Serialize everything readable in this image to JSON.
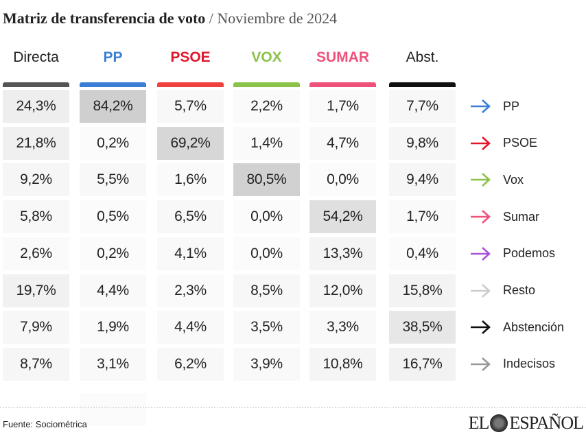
{
  "title": {
    "main": "Matriz de transferencia de voto",
    "sub": "/ Noviembre de 2024"
  },
  "chart_data": {
    "type": "heatmap",
    "columns": [
      {
        "label": "Directa",
        "color": "#222222",
        "bar_color": "#555555"
      },
      {
        "label": "PP",
        "color": "#3a7fd5",
        "bar_color": "#3a7fd5"
      },
      {
        "label": "PSOE",
        "color": "#e3172b",
        "bar_color": "#f04040"
      },
      {
        "label": "VOX",
        "color": "#8bc34a",
        "bar_color": "#8bc34a"
      },
      {
        "label": "SUMAR",
        "color": "#f0517a",
        "bar_color": "#f0517a"
      },
      {
        "label": "Abst.",
        "color": "#222222",
        "bar_color": "#111111"
      }
    ],
    "rows": [
      {
        "label": "PP",
        "arrow_color": "#3a7fd5",
        "values": [
          "24,3%",
          "84,2%",
          "5,7%",
          "2,2%",
          "1,7%",
          "7,7%"
        ]
      },
      {
        "label": "PSOE",
        "arrow_color": "#e3172b",
        "values": [
          "21,8%",
          "0,2%",
          "69,2%",
          "1,4%",
          "4,7%",
          "9,8%"
        ]
      },
      {
        "label": "Vox",
        "arrow_color": "#8bc34a",
        "values": [
          "9,2%",
          "5,5%",
          "1,6%",
          "80,5%",
          "0,0%",
          "9,4%"
        ]
      },
      {
        "label": "Sumar",
        "arrow_color": "#f0517a",
        "values": [
          "5,8%",
          "0,5%",
          "6,5%",
          "0,0%",
          "54,2%",
          "1,7%"
        ]
      },
      {
        "label": "Podemos",
        "arrow_color": "#a855d8",
        "values": [
          "2,6%",
          "0,2%",
          "4,1%",
          "0,0%",
          "13,3%",
          "0,4%"
        ]
      },
      {
        "label": "Resto",
        "arrow_color": "#cccccc",
        "values": [
          "19,7%",
          "4,4%",
          "2,3%",
          "8,5%",
          "12,0%",
          "15,8%"
        ]
      },
      {
        "label": "Abstención",
        "arrow_color": "#111111",
        "values": [
          "7,9%",
          "1,9%",
          "4,4%",
          "3,5%",
          "3,3%",
          "38,5%"
        ]
      },
      {
        "label": "Indecisos",
        "arrow_color": "#999999",
        "values": [
          "8,7%",
          "3,1%",
          "6,2%",
          "3,9%",
          "10,8%",
          "16,7%"
        ]
      }
    ]
  },
  "footer": {
    "source": "Fuente: Sociométrica",
    "logo": "EL ESPAÑOL"
  }
}
